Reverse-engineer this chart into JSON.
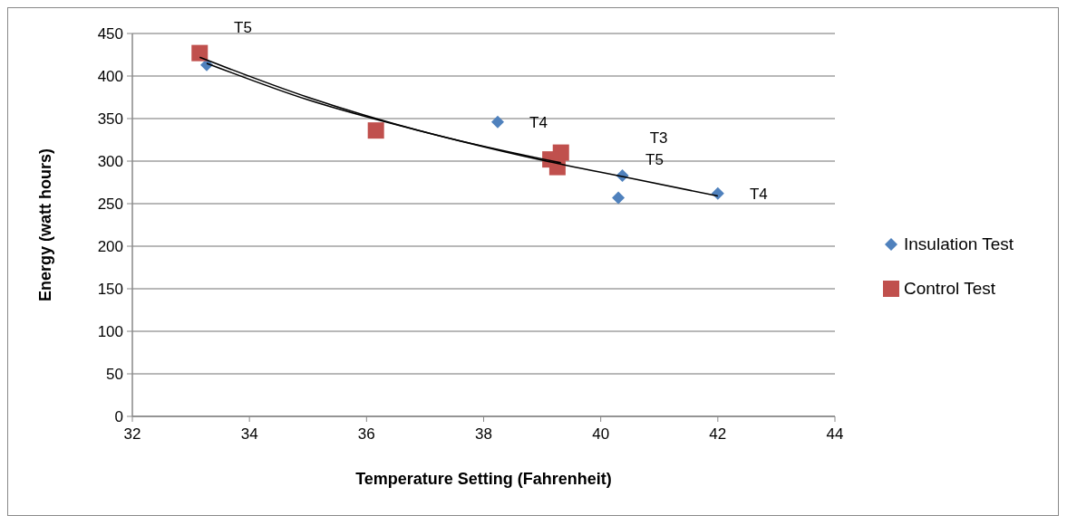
{
  "chart_data": {
    "type": "scatter",
    "xlabel": "Temperature Setting (Fahrenheit)",
    "ylabel": "Energy (watt hours)",
    "xlim": [
      32,
      44
    ],
    "xticks": [
      32,
      34,
      36,
      38,
      40,
      42,
      44
    ],
    "ylim": [
      0,
      450
    ],
    "yticks": [
      0,
      50,
      100,
      150,
      200,
      250,
      300,
      350,
      400,
      450
    ],
    "grid": "y",
    "legend": "right",
    "series": [
      {
        "name": "Insulation Test",
        "color": "#4f81bd",
        "marker": "diamond",
        "x": [
          33.27,
          38.24,
          40.37,
          40.3,
          42.0
        ],
        "values": [
          413,
          346,
          283,
          257,
          262
        ]
      },
      {
        "name": "Control Test",
        "color": "#c0504d",
        "marker": "square",
        "x": [
          33.15,
          36.16,
          39.32,
          39.14,
          39.26
        ],
        "values": [
          427,
          336,
          310,
          302,
          293
        ]
      },
      {
        "type": "line",
        "color": "#000000",
        "marker": "none",
        "x": [
          33.27,
          35,
          37,
          39,
          40.5,
          42
        ],
        "values": [
          415,
          372,
          334,
          301,
          280,
          259
        ]
      },
      {
        "type": "line",
        "color": "#000000",
        "marker": "none",
        "x": [
          33.15,
          35,
          37,
          39.32
        ],
        "values": [
          422,
          375,
          334,
          298
        ]
      }
    ],
    "annotations": [
      {
        "text": "T5",
        "x": 33.27,
        "y": 413
      },
      {
        "text": "T4",
        "x": 38.24,
        "y": 346
      },
      {
        "text": "T3",
        "x": 40.37,
        "y": 283
      },
      {
        "text": "T5",
        "x": 40.3,
        "y": 257
      },
      {
        "text": "T4",
        "x": 42.0,
        "y": 262
      }
    ]
  }
}
